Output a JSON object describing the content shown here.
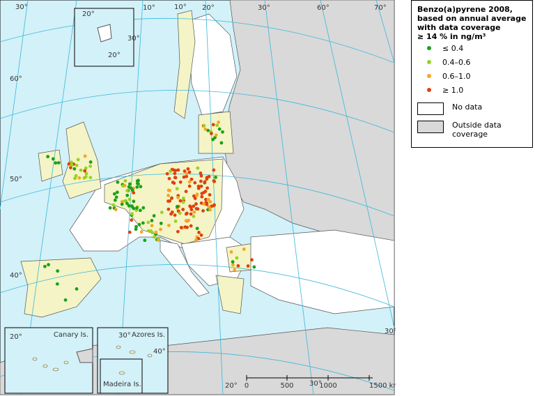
{
  "legend": {
    "title_lines": [
      "Benzo(a)pyrene 2008,",
      "based on annual average",
      "with data coverage",
      "≥ 14 % in ng/m³"
    ],
    "classes": [
      {
        "label": "≤ 0.4",
        "color": "#1aa11a"
      },
      {
        "label": "0.4–0.6",
        "color": "#9ad21e"
      },
      {
        "label": "0.6–1.0",
        "color": "#f5a623"
      },
      {
        "label": "≥ 1.0",
        "color": "#e0400e"
      }
    ],
    "no_data": "No data",
    "outside": "Outside data coverage"
  },
  "insets": {
    "canary": "Canary Is.",
    "azores": "Azores Is.",
    "madeira": "Madeira Is."
  },
  "graticule": [
    "30°",
    "20°",
    "10°",
    "20°",
    "30°",
    "10°",
    "20°",
    "30°",
    "60°",
    "70°",
    "60°",
    "50°",
    "40°",
    "20°",
    "30°",
    "40°",
    "20°",
    "30°",
    "30°"
  ],
  "scale_bar": [
    "0",
    "500",
    "1000",
    "1500 km"
  ]
}
